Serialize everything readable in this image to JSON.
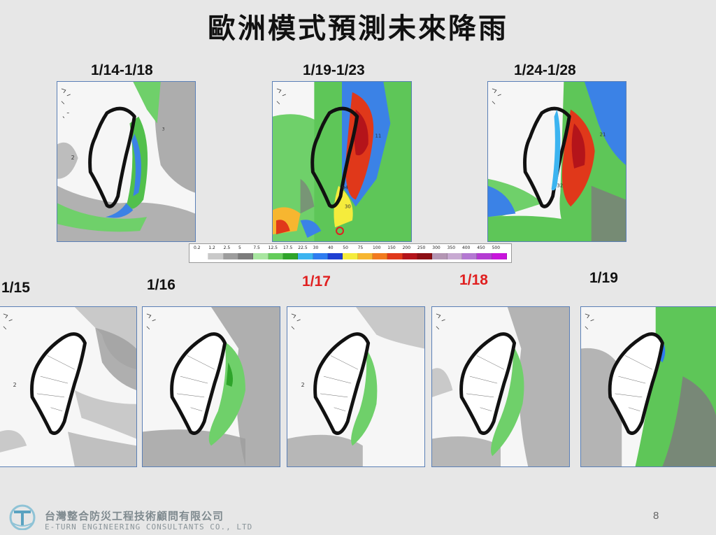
{
  "slide": {
    "title": "歐洲模式預測未來降雨",
    "page_number": "8"
  },
  "top_maps": [
    {
      "label": "1/14-1/18",
      "highlight": false
    },
    {
      "label": "1/19-1/23",
      "highlight": false
    },
    {
      "label": "1/24-1/28",
      "highlight": false
    }
  ],
  "daily_maps": [
    {
      "label": "1/15",
      "highlight": false
    },
    {
      "label": "1/16",
      "highlight": false
    },
    {
      "label": "1/17",
      "highlight": true
    },
    {
      "label": "1/18",
      "highlight": true
    },
    {
      "label": "1/19",
      "highlight": false
    }
  ],
  "color_scale": {
    "ticks": [
      "0.2",
      "1.2",
      "2.5",
      "5",
      "7.5",
      "12.5",
      "17.5",
      "22.5",
      "30",
      "40",
      "50",
      "75",
      "100",
      "150",
      "200",
      "250",
      "300",
      "350",
      "400",
      "450",
      "500"
    ],
    "colors": [
      "#ffffff",
      "#c9c9c9",
      "#9d9d9d",
      "#7c7c7c",
      "#a8e6a0",
      "#64cc5a",
      "#2ea42a",
      "#3cb4f0",
      "#2f7cf0",
      "#1e3fd2",
      "#f5ec3c",
      "#f7b630",
      "#f27a1e",
      "#e0381a",
      "#b4141a",
      "#8c0e14",
      "#b496b4",
      "#c8aad2",
      "#b478d2",
      "#b43cd2",
      "#c814dc"
    ],
    "accent_red": "#e02020"
  },
  "footer": {
    "company_cn": "台灣整合防災工程技術顧問有限公司",
    "company_en": "E-TURN ENGINEERING CONSULTANTS CO., LTD"
  }
}
